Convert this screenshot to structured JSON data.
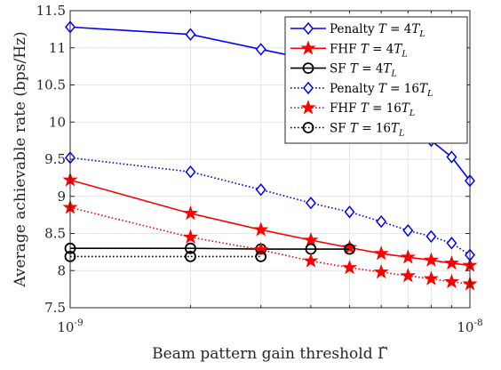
{
  "chart_data": {
    "type": "line",
    "xlabel": "Beam pattern gain threshold Γ̃",
    "ylabel": "Average achievable rate (bps/Hz)",
    "xscale": "log",
    "xlim": [
      1e-09,
      1e-08
    ],
    "ylim": [
      7.5,
      11.5
    ],
    "grid": true,
    "legend_position": "top-right",
    "xticks": [
      {
        "value": 1e-09,
        "base": "10",
        "exp": "-9"
      },
      {
        "value": 1e-08,
        "base": "10",
        "exp": "-8"
      }
    ],
    "yticks": [
      7.5,
      8,
      8.5,
      9,
      9.5,
      10,
      10.5,
      11,
      11.5
    ],
    "ytick_labels": [
      "7.5",
      "8",
      "8.5",
      "9",
      "9.5",
      "10",
      "10.5",
      "11",
      "11.5"
    ],
    "series": [
      {
        "name": "Penalty T = 4T_L",
        "label_parts": [
          "Penalty ",
          "T",
          " = 4",
          "T",
          "L"
        ],
        "color": "#0000ff",
        "dash": "solid",
        "marker": "diamond",
        "x": [
          1e-09,
          2e-09,
          3e-09,
          4e-09,
          5e-09,
          6e-09,
          7e-09,
          8e-09,
          9e-09,
          1e-08
        ],
        "y": [
          11.28,
          11.18,
          10.98,
          10.84,
          10.66,
          10.45,
          10.2,
          9.75,
          9.53,
          9.21
        ]
      },
      {
        "name": "FHF T = 4T_L",
        "label_parts": [
          "FHF ",
          "T",
          " = 4",
          "T",
          "L"
        ],
        "color": "#ff0000",
        "dash": "solid",
        "marker": "star",
        "x": [
          1e-09,
          2e-09,
          3e-09,
          4e-09,
          5e-09,
          6e-09,
          7e-09,
          8e-09,
          9e-09,
          1e-08
        ],
        "y": [
          9.22,
          8.77,
          8.55,
          8.41,
          8.31,
          8.23,
          8.18,
          8.14,
          8.1,
          8.07
        ]
      },
      {
        "name": "SF T = 4T_L",
        "label_parts": [
          "SF ",
          "T",
          " = 4",
          "T",
          "L"
        ],
        "color": "#000000",
        "dash": "solid",
        "marker": "circle",
        "x": [
          1e-09,
          2e-09,
          3e-09,
          4e-09,
          5e-09
        ],
        "y": [
          8.3,
          8.3,
          8.29,
          8.29,
          8.29
        ]
      },
      {
        "name": "Penalty T = 16T_L",
        "label_parts": [
          "Penalty ",
          "T",
          " = 16",
          "T",
          "L"
        ],
        "color": "#0000ff",
        "dash": "dotted",
        "marker": "diamond",
        "x": [
          1e-09,
          2e-09,
          3e-09,
          4e-09,
          5e-09,
          6e-09,
          7e-09,
          8e-09,
          9e-09,
          1e-08
        ],
        "y": [
          9.52,
          9.33,
          9.09,
          8.91,
          8.79,
          8.66,
          8.54,
          8.46,
          8.37,
          8.21
        ]
      },
      {
        "name": "FHF T = 16T_L",
        "label_parts": [
          "FHF ",
          "T",
          " = 16",
          "T",
          "L"
        ],
        "color": "#ff0000",
        "dash": "dotted",
        "marker": "star",
        "x": [
          1e-09,
          2e-09,
          3e-09,
          4e-09,
          5e-09,
          6e-09,
          7e-09,
          8e-09,
          9e-09,
          1e-08
        ],
        "y": [
          8.85,
          8.45,
          8.28,
          8.13,
          8.04,
          7.98,
          7.93,
          7.89,
          7.85,
          7.82
        ]
      },
      {
        "name": "SF T = 16T_L",
        "label_parts": [
          "SF ",
          "T",
          " = 16",
          "T",
          "L"
        ],
        "color": "#000000",
        "dash": "dotted",
        "marker": "circle",
        "x": [
          1e-09,
          2e-09,
          3e-09
        ],
        "y": [
          8.19,
          8.19,
          8.19
        ]
      }
    ]
  }
}
